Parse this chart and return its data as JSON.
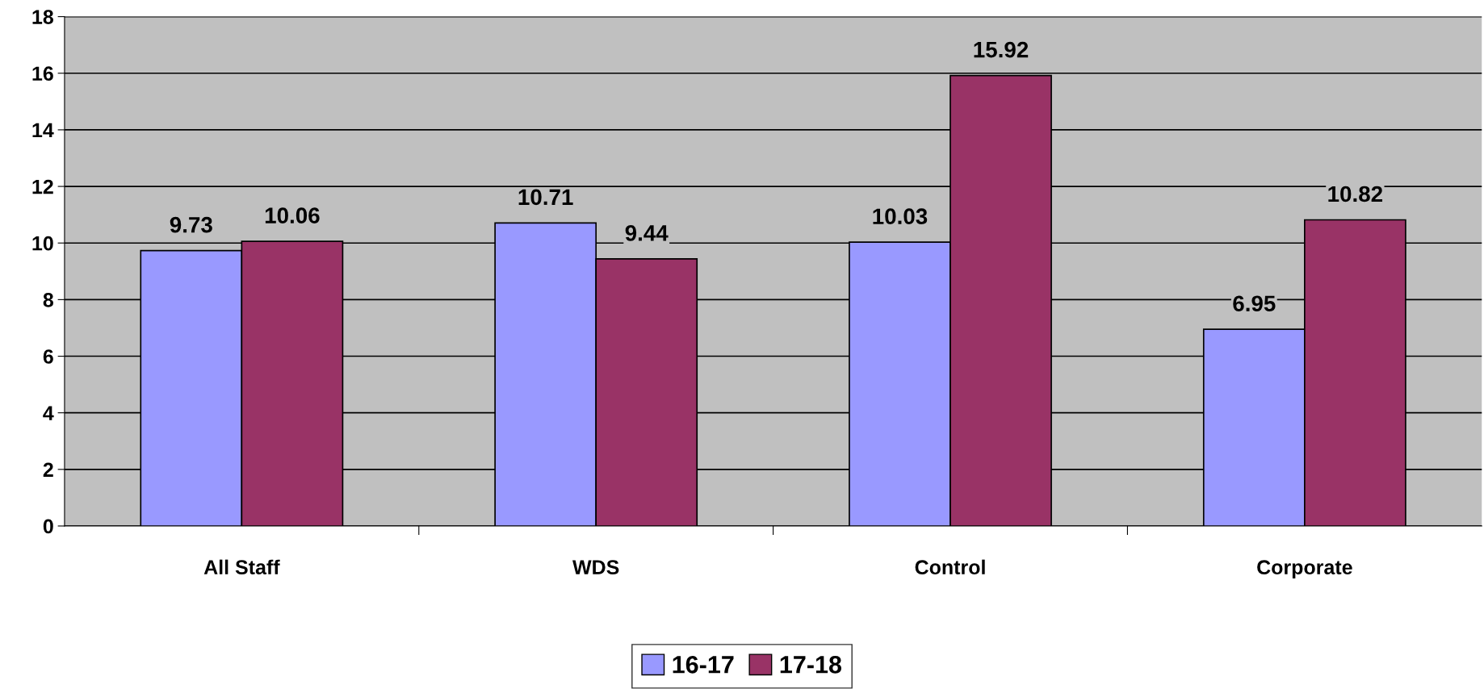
{
  "chart_data": {
    "type": "bar",
    "categories": [
      "All Staff",
      "WDS",
      "Control",
      "Corporate"
    ],
    "series": [
      {
        "name": "16-17",
        "color": "#9999ff",
        "values": [
          9.73,
          10.71,
          10.03,
          6.95
        ]
      },
      {
        "name": "17-18",
        "color": "#993366",
        "values": [
          10.06,
          9.44,
          15.92,
          10.82
        ]
      }
    ],
    "ylim": [
      0,
      18
    ],
    "yticks": [
      0,
      2,
      4,
      6,
      8,
      10,
      12,
      14,
      16,
      18
    ],
    "grid": "y",
    "legend": "bottom",
    "data_labels": true
  }
}
